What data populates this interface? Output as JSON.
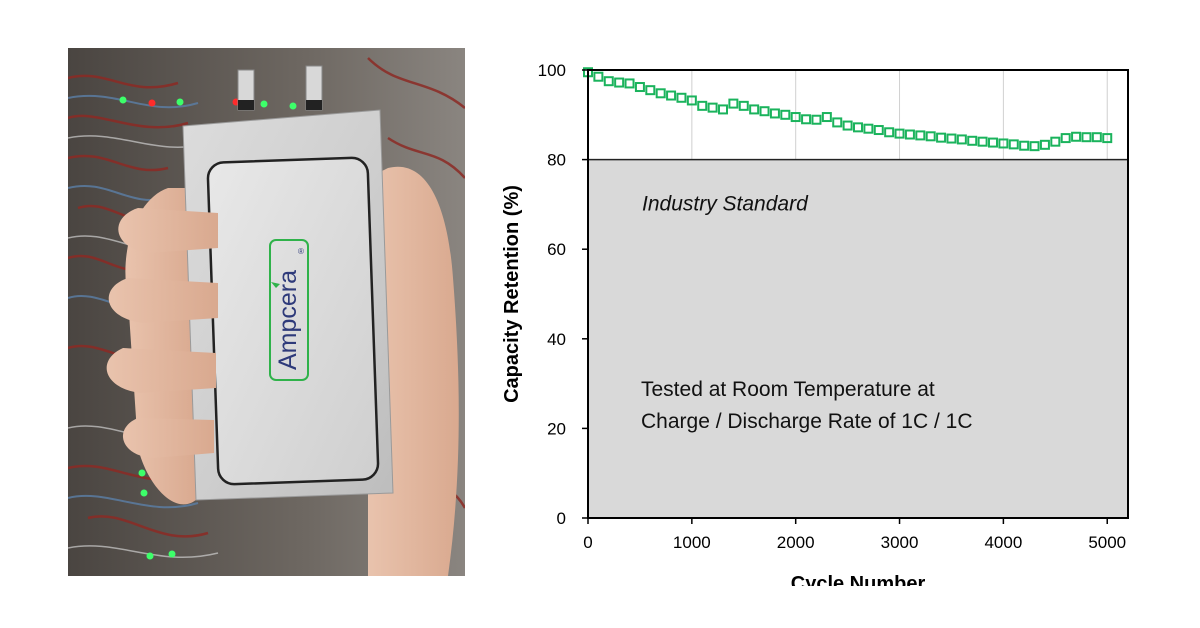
{
  "photo": {
    "brand_text": "Ampcera",
    "registered_mark": "®"
  },
  "colors": {
    "series": "#1ab35c",
    "standard_zone": "#d9d9d9",
    "grid": "#d0d0d0",
    "frame": "#000000"
  },
  "chart_data": {
    "type": "scatter",
    "title": "",
    "xlabel": "Cycle Number",
    "ylabel": "Capacity Retention (%)",
    "xlim": [
      0,
      5200
    ],
    "ylim": [
      0,
      100
    ],
    "xticks": [
      0,
      1000,
      2000,
      3000,
      4000,
      5000
    ],
    "yticks": [
      0,
      20,
      40,
      60,
      80,
      100
    ],
    "grid": true,
    "legend": "none",
    "shaded_region": {
      "label": "Industry Standard",
      "y_from": 0,
      "y_to": 80
    },
    "annotation_lines": [
      "Tested at Room Temperature at",
      "Charge / Discharge Rate of 1C / 1C"
    ],
    "series": [
      {
        "x": [
          0,
          100,
          200,
          300,
          400,
          500,
          600,
          700,
          800,
          900,
          1000,
          1100,
          1200,
          1300,
          1400,
          1500,
          1600,
          1700,
          1800,
          1900,
          2000,
          2100,
          2200,
          2300,
          2400,
          2500,
          2600,
          2700,
          2800,
          2900,
          3000,
          3100,
          3200,
          3300,
          3400,
          3500,
          3600,
          3700,
          3800,
          3900,
          4000,
          4100,
          4200,
          4300,
          4400,
          4500,
          4600,
          4700,
          4800,
          4900,
          5000
        ],
        "y": [
          99.5,
          98.5,
          97.5,
          97.2,
          97.0,
          96.2,
          95.5,
          94.8,
          94.3,
          93.8,
          93.2,
          92.0,
          91.6,
          91.2,
          92.5,
          92.0,
          91.2,
          90.8,
          90.3,
          90.0,
          89.5,
          89.0,
          88.9,
          89.5,
          88.3,
          87.6,
          87.2,
          86.9,
          86.6,
          86.1,
          85.8,
          85.6,
          85.4,
          85.2,
          84.9,
          84.7,
          84.5,
          84.2,
          84.0,
          83.8,
          83.6,
          83.4,
          83.1,
          83.0,
          83.3,
          84.0,
          84.8,
          85.1,
          85.0,
          85.0,
          84.8
        ]
      }
    ]
  }
}
